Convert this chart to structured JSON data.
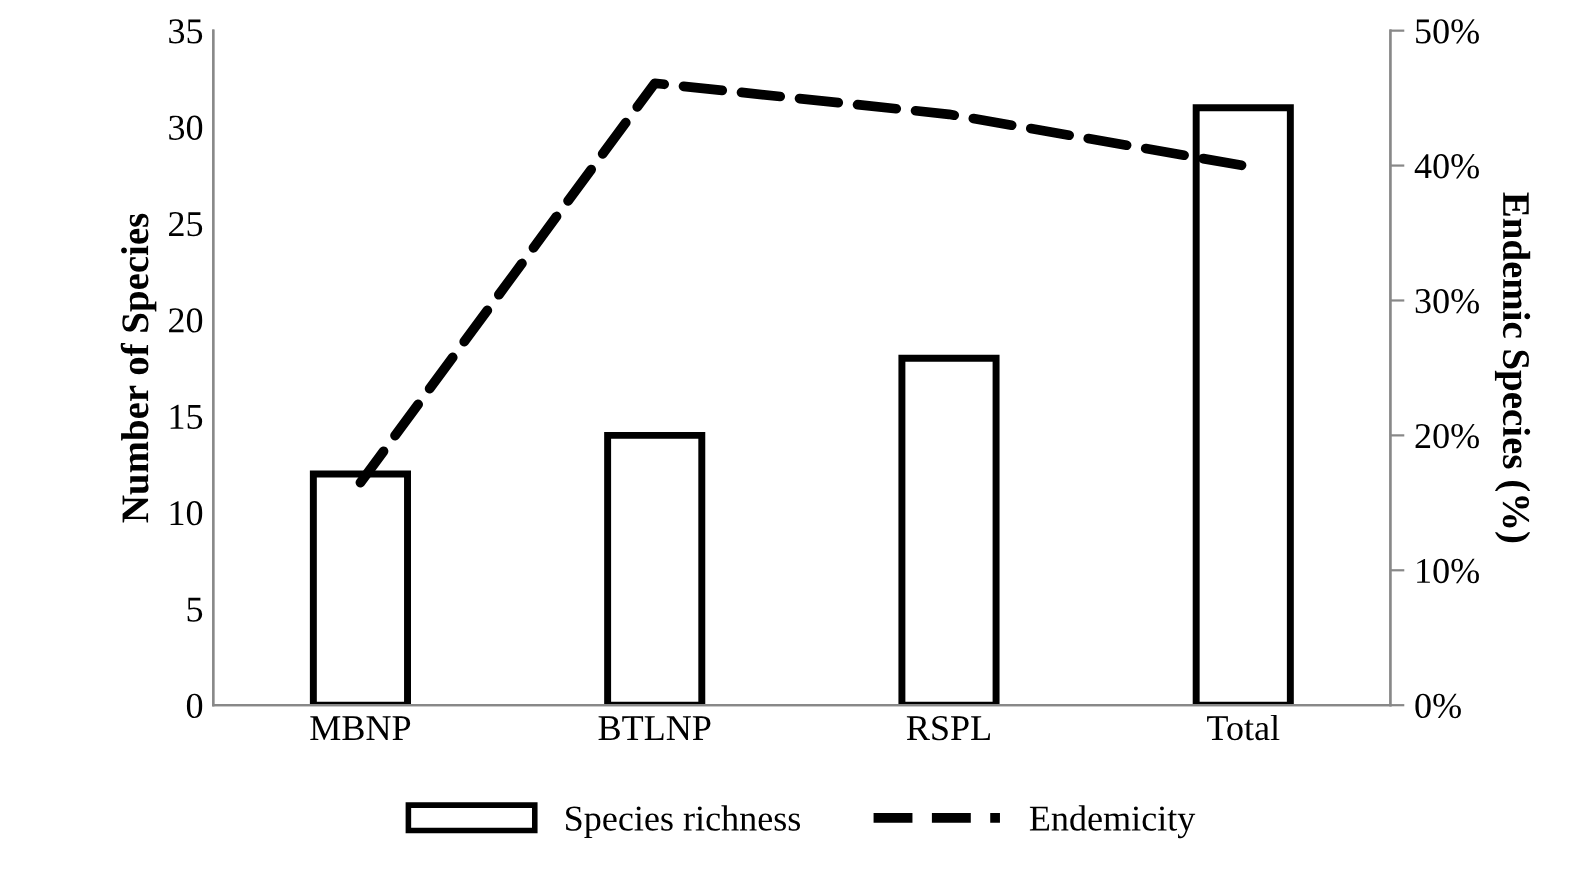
{
  "chart_data": {
    "type": "bar",
    "categories": [
      "MBNP",
      "BTLNP",
      "RSPL",
      "Total"
    ],
    "ylabel": "Number of Species",
    "y2label": "Endemic Species (%)",
    "series": [
      {
        "name": "Species richness",
        "color": "#ffffff",
        "values": [
          12,
          14,
          18,
          31
        ]
      },
      {
        "name": "Endemicity",
        "type": "line",
        "axis": "y2",
        "color": "#000000",
        "line_style": "dashed",
        "values": [
          16.5,
          46.1,
          43.8,
          40.0
        ]
      }
    ],
    "ylim": [
      0,
      35
    ],
    "yticks": [
      0,
      5,
      10,
      15,
      20,
      25,
      30,
      35
    ],
    "y2lim": [
      0,
      50
    ],
    "y2ticks": [
      {
        "value": 0,
        "label": "0%"
      },
      {
        "value": 10,
        "label": "10%"
      },
      {
        "value": 20,
        "label": "20%"
      },
      {
        "value": 30,
        "label": "30%"
      },
      {
        "value": 40,
        "label": "40%"
      },
      {
        "value": 50,
        "label": "50%"
      }
    ],
    "grid": false,
    "legend": "bottom"
  }
}
